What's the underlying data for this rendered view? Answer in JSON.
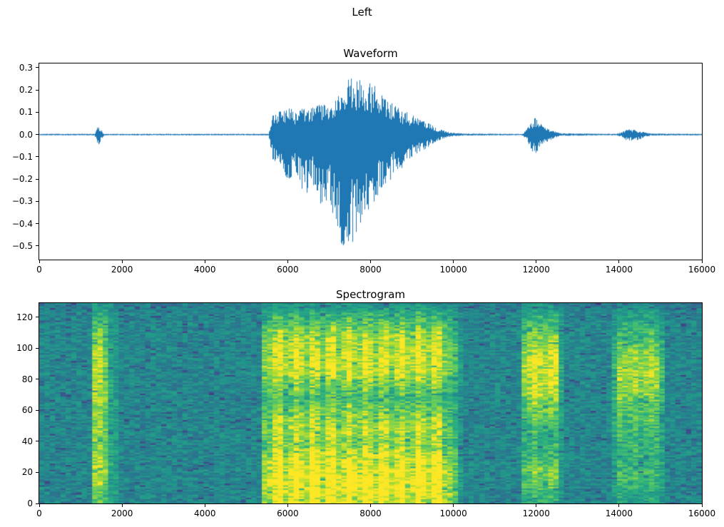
{
  "figure": {
    "title": "Left",
    "background": "#ffffff",
    "text_color": "#000000"
  },
  "chart_data": [
    {
      "type": "line",
      "title": "Waveform",
      "xlabel": "",
      "ylabel": "",
      "line_color": "#1f77b4",
      "xlim": [
        0,
        16000
      ],
      "ylim": [
        -0.561,
        0.319
      ],
      "grid": false,
      "xticks": {
        "values": [
          0,
          2000,
          4000,
          6000,
          8000,
          10000,
          12000,
          14000,
          16000
        ],
        "labels": [
          "0",
          "2000",
          "4000",
          "6000",
          "8000",
          "10000",
          "12000",
          "14000",
          "16000"
        ]
      },
      "yticks": {
        "values": [
          0.3,
          0.2,
          0.1,
          0.0,
          -0.1,
          -0.2,
          -0.3,
          -0.4,
          -0.5
        ],
        "labels": [
          "0.3",
          "0.2",
          "0.1",
          "0.0",
          "−0.1",
          "−0.2",
          "−0.3",
          "−0.4",
          "−0.5"
        ]
      },
      "series_description": "audio amplitude envelope as [sample_x, min_amplitude, max_amplitude]",
      "envelope": [
        [
          0,
          -0.0035,
          0.0035
        ],
        [
          1330,
          -0.0035,
          0.0035
        ],
        [
          1380,
          -0.03,
          0.028
        ],
        [
          1430,
          -0.05,
          0.04
        ],
        [
          1480,
          -0.032,
          0.026
        ],
        [
          1530,
          -0.01,
          0.009
        ],
        [
          1570,
          -0.0035,
          0.0035
        ],
        [
          5530,
          -0.0035,
          0.0035
        ],
        [
          5580,
          -0.06,
          0.05
        ],
        [
          5640,
          -0.12,
          0.1
        ],
        [
          5800,
          -0.13,
          0.11
        ],
        [
          6000,
          -0.22,
          0.12
        ],
        [
          6200,
          -0.18,
          0.11
        ],
        [
          6400,
          -0.28,
          0.12
        ],
        [
          6600,
          -0.22,
          0.13
        ],
        [
          6800,
          -0.35,
          0.14
        ],
        [
          7000,
          -0.3,
          0.15
        ],
        [
          7200,
          -0.45,
          0.17
        ],
        [
          7350,
          -0.52,
          0.21
        ],
        [
          7500,
          -0.48,
          0.27
        ],
        [
          7600,
          -0.5,
          0.28
        ],
        [
          7750,
          -0.4,
          0.24
        ],
        [
          7900,
          -0.35,
          0.25
        ],
        [
          8100,
          -0.3,
          0.23
        ],
        [
          8300,
          -0.25,
          0.18
        ],
        [
          8500,
          -0.2,
          0.15
        ],
        [
          8700,
          -0.16,
          0.12
        ],
        [
          8900,
          -0.12,
          0.1
        ],
        [
          9100,
          -0.09,
          0.08
        ],
        [
          9300,
          -0.07,
          0.06
        ],
        [
          9450,
          -0.05,
          0.05
        ],
        [
          9600,
          -0.03,
          0.03
        ],
        [
          9800,
          -0.015,
          0.015
        ],
        [
          10000,
          -0.008,
          0.008
        ],
        [
          10300,
          -0.0045,
          0.0045
        ],
        [
          11650,
          -0.0035,
          0.0035
        ],
        [
          11750,
          -0.02,
          0.02
        ],
        [
          11850,
          -0.06,
          0.05
        ],
        [
          11950,
          -0.09,
          0.08
        ],
        [
          12050,
          -0.07,
          0.06
        ],
        [
          12150,
          -0.04,
          0.04
        ],
        [
          12300,
          -0.03,
          0.025
        ],
        [
          12450,
          -0.015,
          0.015
        ],
        [
          12600,
          -0.006,
          0.006
        ],
        [
          13900,
          -0.0035,
          0.0035
        ],
        [
          14050,
          -0.01,
          0.01
        ],
        [
          14150,
          -0.025,
          0.02
        ],
        [
          14300,
          -0.03,
          0.025
        ],
        [
          14450,
          -0.025,
          0.02
        ],
        [
          14600,
          -0.012,
          0.012
        ],
        [
          14750,
          -0.005,
          0.005
        ],
        [
          16000,
          -0.0035,
          0.0035
        ]
      ]
    },
    {
      "type": "heatmap",
      "title": "Spectrogram",
      "xlabel": "",
      "ylabel": "",
      "xlim": [
        0,
        16000
      ],
      "ylim": [
        0,
        129
      ],
      "grid": false,
      "xticks": {
        "values": [
          0,
          2000,
          4000,
          6000,
          8000,
          10000,
          12000,
          14000,
          16000
        ],
        "labels": [
          "0",
          "2000",
          "4000",
          "6000",
          "8000",
          "10000",
          "12000",
          "14000",
          "16000"
        ]
      },
      "yticks": {
        "values": [
          0,
          20,
          40,
          60,
          80,
          100,
          120
        ],
        "labels": [
          "0",
          "20",
          "40",
          "60",
          "80",
          "100",
          "120"
        ]
      },
      "colormap": {
        "name": "viridis",
        "anchors": [
          [
            0.0,
            "#440154"
          ],
          [
            0.125,
            "#46327e"
          ],
          [
            0.25,
            "#3b528b"
          ],
          [
            0.375,
            "#2c728e"
          ],
          [
            0.5,
            "#21918c"
          ],
          [
            0.625,
            "#27ad81"
          ],
          [
            0.75,
            "#5ec962"
          ],
          [
            0.875,
            "#aadc32"
          ],
          [
            1.0,
            "#fde725"
          ]
        ]
      },
      "time_bins": 125,
      "freq_bins": 129,
      "base_level": 0.46,
      "noise": 0.1,
      "dark_speckle_probability": 0.06,
      "events_description": "time-localized energy bursts: x range, ramp widths, strength, and frequency weighting as [freq_bin, weight]",
      "events": [
        {
          "x0": 1280,
          "x1": 1560,
          "attack": 60,
          "release": 90,
          "strength": 0.5,
          "striping": 0.1,
          "freq_weights": [
            [
              0,
              0.5
            ],
            [
              15,
              0.85
            ],
            [
              30,
              0.7
            ],
            [
              45,
              0.75
            ],
            [
              60,
              0.65
            ],
            [
              75,
              0.8
            ],
            [
              90,
              0.85
            ],
            [
              105,
              0.7
            ],
            [
              118,
              0.45
            ],
            [
              129,
              0.2
            ]
          ]
        },
        {
          "x0": 1560,
          "x1": 1820,
          "attack": 40,
          "release": 140,
          "strength": 0.2,
          "striping": 0.1,
          "freq_weights": [
            [
              0,
              0.4
            ],
            [
              20,
              0.7
            ],
            [
              50,
              0.6
            ],
            [
              80,
              0.65
            ],
            [
              110,
              0.5
            ],
            [
              129,
              0.2
            ]
          ]
        },
        {
          "x0": 5480,
          "x1": 9750,
          "attack": 120,
          "release": 520,
          "strength": 0.58,
          "striping": 0.22,
          "freq_weights": [
            [
              0,
              0.85
            ],
            [
              8,
              1.0
            ],
            [
              18,
              1.0
            ],
            [
              28,
              0.9
            ],
            [
              38,
              0.65
            ],
            [
              48,
              0.75
            ],
            [
              58,
              0.6
            ],
            [
              68,
              0.4
            ],
            [
              76,
              0.6
            ],
            [
              84,
              0.8
            ],
            [
              92,
              0.85
            ],
            [
              100,
              0.8
            ],
            [
              108,
              0.7
            ],
            [
              116,
              0.45
            ],
            [
              124,
              0.25
            ],
            [
              129,
              0.15
            ]
          ]
        },
        {
          "x0": 11720,
          "x1": 12480,
          "attack": 80,
          "release": 200,
          "strength": 0.5,
          "striping": 0.12,
          "freq_weights": [
            [
              0,
              0.3
            ],
            [
              12,
              0.6
            ],
            [
              22,
              0.65
            ],
            [
              35,
              0.35
            ],
            [
              50,
              0.45
            ],
            [
              65,
              0.75
            ],
            [
              80,
              0.95
            ],
            [
              92,
              1.0
            ],
            [
              102,
              0.8
            ],
            [
              112,
              0.55
            ],
            [
              122,
              0.3
            ],
            [
              129,
              0.15
            ]
          ]
        },
        {
          "x0": 13950,
          "x1": 14980,
          "attack": 120,
          "release": 160,
          "strength": 0.42,
          "striping": 0.12,
          "freq_weights": [
            [
              0,
              0.25
            ],
            [
              15,
              0.5
            ],
            [
              30,
              0.45
            ],
            [
              45,
              0.5
            ],
            [
              60,
              0.65
            ],
            [
              72,
              0.9
            ],
            [
              85,
              1.0
            ],
            [
              95,
              0.85
            ],
            [
              105,
              0.6
            ],
            [
              118,
              0.3
            ],
            [
              129,
              0.12
            ]
          ]
        }
      ]
    }
  ]
}
